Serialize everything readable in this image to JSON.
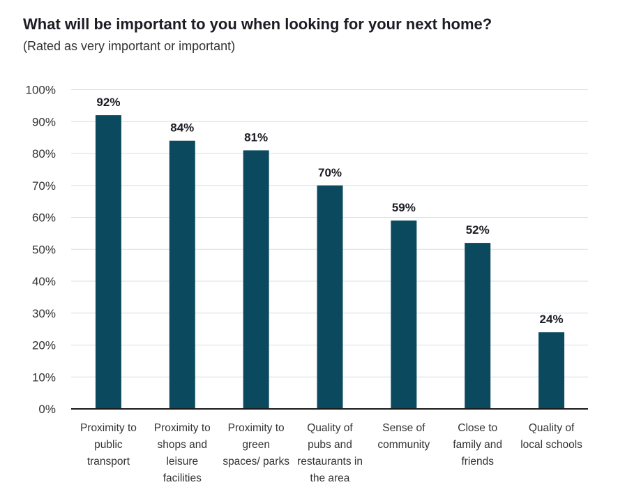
{
  "chart_data": {
    "type": "bar",
    "title": "What will be important to you when looking for your next home?",
    "subtitle": "(Rated as very important or important)",
    "categories": [
      "Proximity to\npublic\ntransport",
      "Proximity to\nshops and\nleisure\nfacilities",
      "Proximity to\ngreen\nspaces/ parks",
      "Quality of\npubs and\nrestaurants in\nthe area",
      "Sense of\ncommunity",
      "Close to\nfamily and\nfriends",
      "Quality of\nlocal schools"
    ],
    "values": [
      92,
      84,
      81,
      70,
      59,
      52,
      24
    ],
    "data_labels": [
      "92%",
      "84%",
      "81%",
      "70%",
      "59%",
      "52%",
      "24%"
    ],
    "ylim": [
      0,
      100
    ],
    "yticks": [
      "0%",
      "10%",
      "20%",
      "30%",
      "40%",
      "50%",
      "60%",
      "70%",
      "80%",
      "90%",
      "100%"
    ],
    "xlabel": "",
    "ylabel": "",
    "grid": true,
    "bar_color": "#0b4a5e",
    "grid_color": "#d3dfe9"
  }
}
